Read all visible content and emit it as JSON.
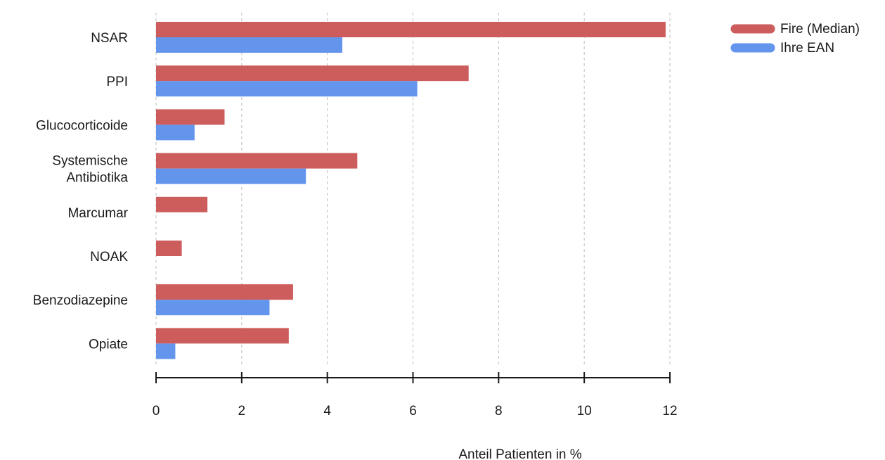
{
  "chart_data": {
    "type": "bar",
    "orientation": "horizontal",
    "categories": [
      [
        "NSAR"
      ],
      [
        "PPI"
      ],
      [
        "Glucocorticoide"
      ],
      [
        "Systemische",
        "Antibiotika"
      ],
      [
        "Marcumar"
      ],
      [
        "NOAK"
      ],
      [
        "Benzodiazepine"
      ],
      [
        "Opiate"
      ]
    ],
    "series": [
      {
        "name": "Fire (Median)",
        "color": "#cd5c5c",
        "values": [
          11.9,
          7.3,
          1.6,
          4.7,
          1.2,
          0.6,
          3.2,
          3.1
        ]
      },
      {
        "name": "Ihre EAN",
        "color": "#6495ed",
        "values": [
          4.35,
          6.1,
          0.9,
          3.5,
          null,
          null,
          2.65,
          0.45
        ]
      }
    ],
    "xlabel": "Anteil Patienten in %",
    "xlim": [
      0,
      12
    ],
    "xticks": [
      0,
      2,
      4,
      6,
      8,
      10,
      12
    ],
    "grid": "vertical dashed",
    "legend_position": "top-right"
  }
}
